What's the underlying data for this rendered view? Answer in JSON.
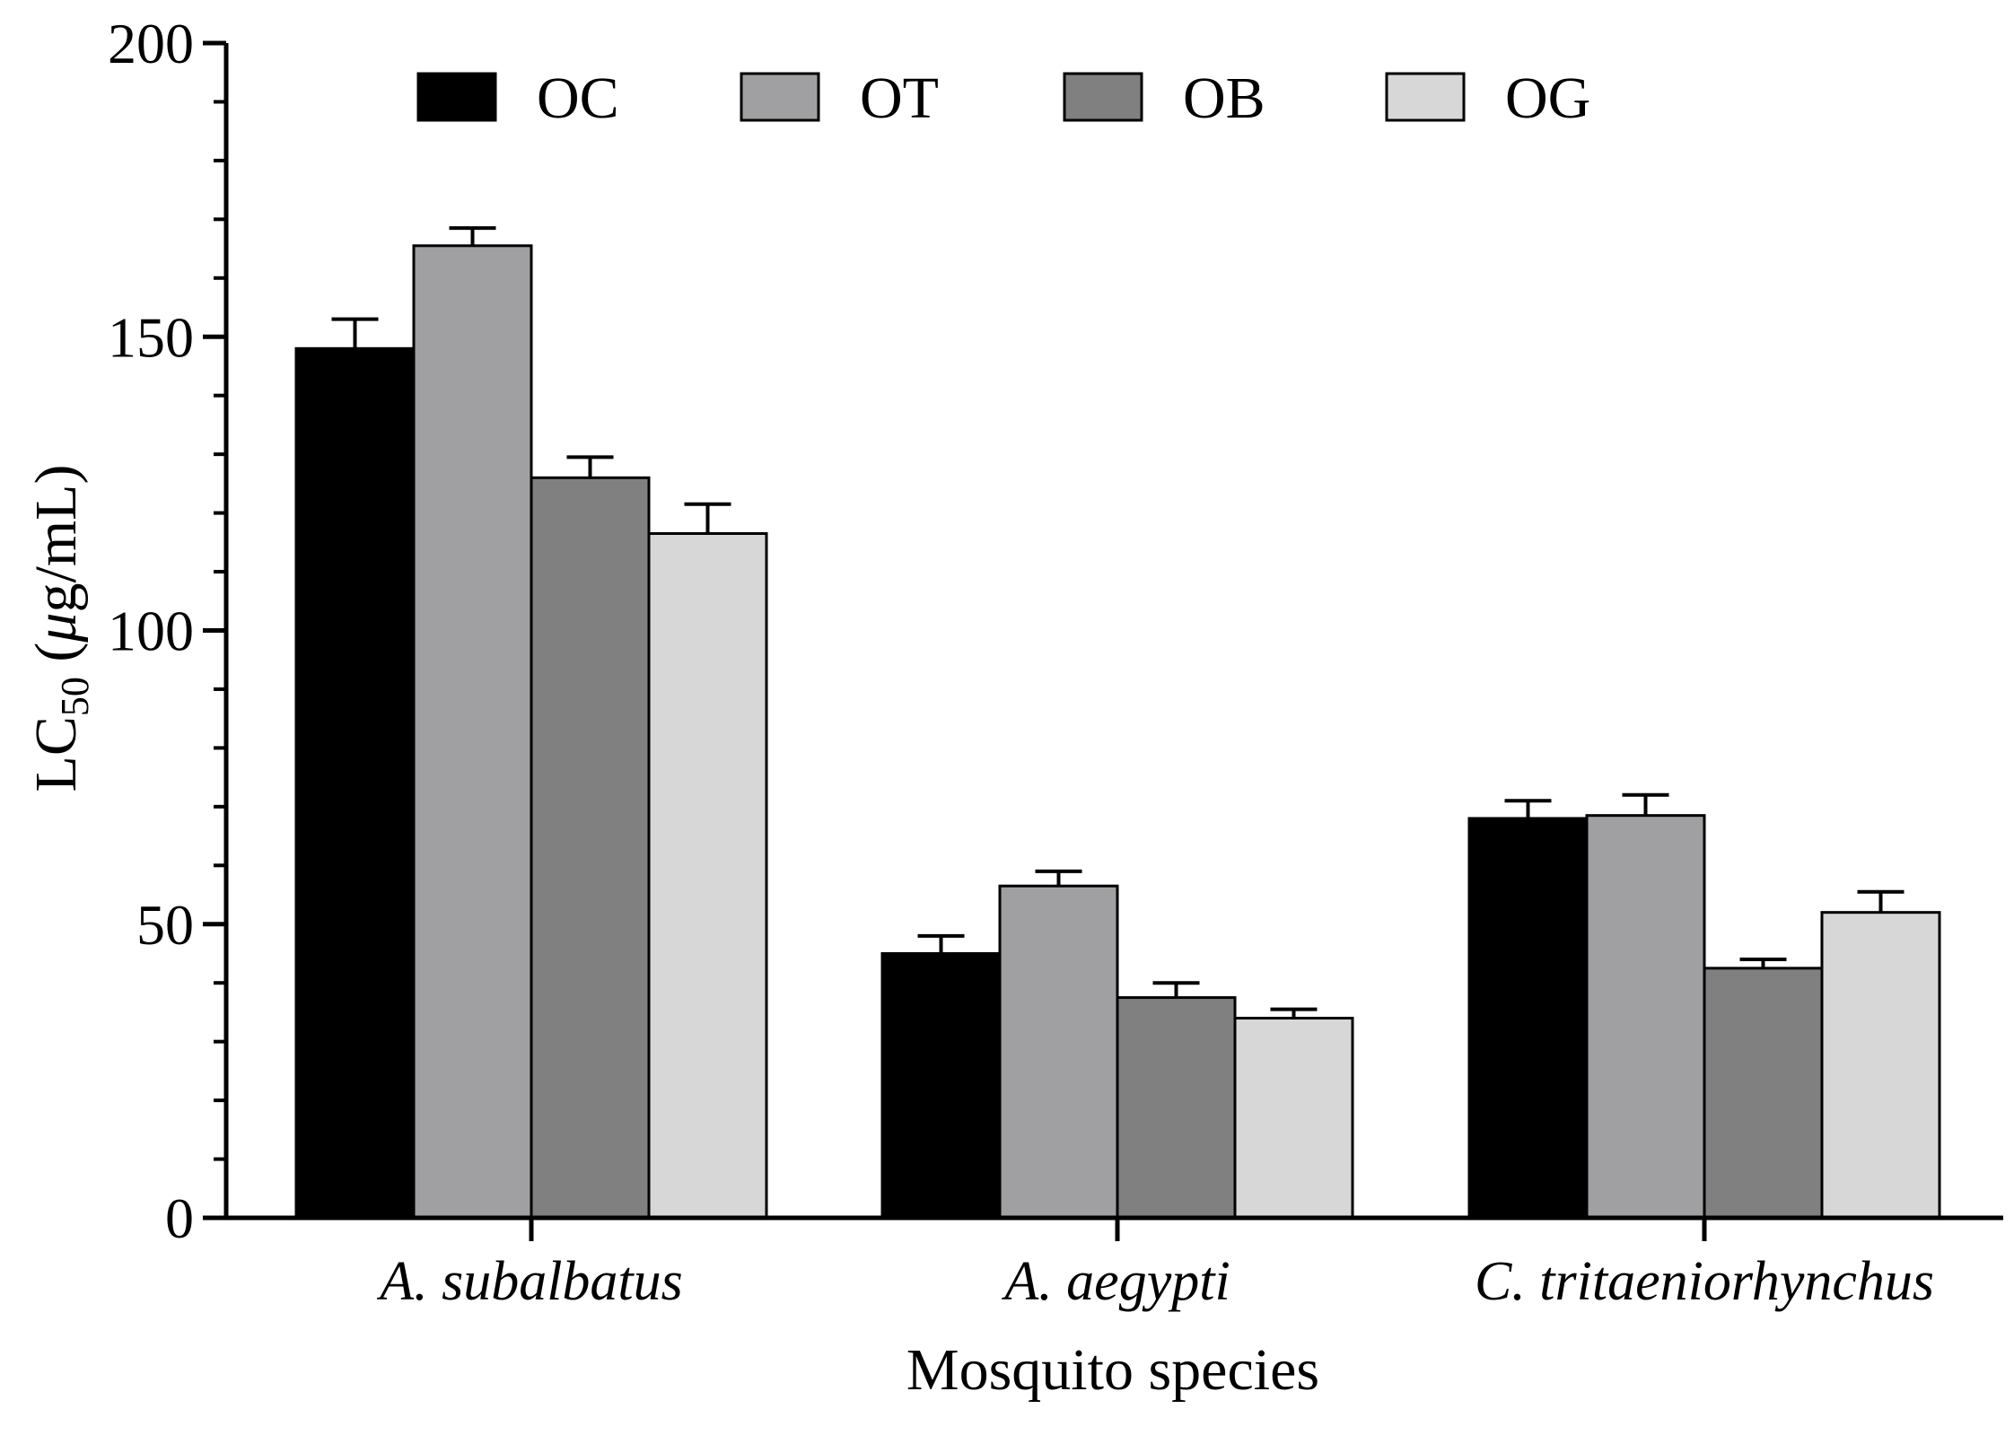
{
  "chart_data": {
    "type": "bar",
    "title": "",
    "xlabel": "Mosquito species",
    "ylabel": {
      "main": "LC",
      "subscript": "50",
      "unit_prefix": " (",
      "unit_mu": "μ",
      "unit_rest": "g/mL)"
    },
    "categories": [
      "A. subalbatus",
      "A. aegypti",
      "C. tritaeniorhynchus"
    ],
    "ylim": [
      0,
      200
    ],
    "yticks": [
      0,
      50,
      100,
      150,
      200
    ],
    "ytick_labels": [
      "0",
      "50",
      "100",
      "150",
      "200"
    ],
    "grid": false,
    "legend_position": "top",
    "series": [
      {
        "name": "OC",
        "color": "#000000",
        "values": [
          148,
          45,
          68
        ],
        "errors": [
          5,
          3,
          3
        ]
      },
      {
        "name": "OT",
        "color": "#a0a0a2",
        "values": [
          165.5,
          56.5,
          68.5
        ],
        "errors": [
          3,
          2.5,
          3.5
        ]
      },
      {
        "name": "OB",
        "color": "#808080",
        "values": [
          126,
          37.5,
          42.5
        ],
        "errors": [
          3.5,
          2.5,
          1.5
        ]
      },
      {
        "name": "OG",
        "color": "#d7d7d7",
        "values": [
          116.5,
          34,
          52
        ],
        "errors": [
          5,
          1.5,
          3.5
        ]
      }
    ]
  }
}
